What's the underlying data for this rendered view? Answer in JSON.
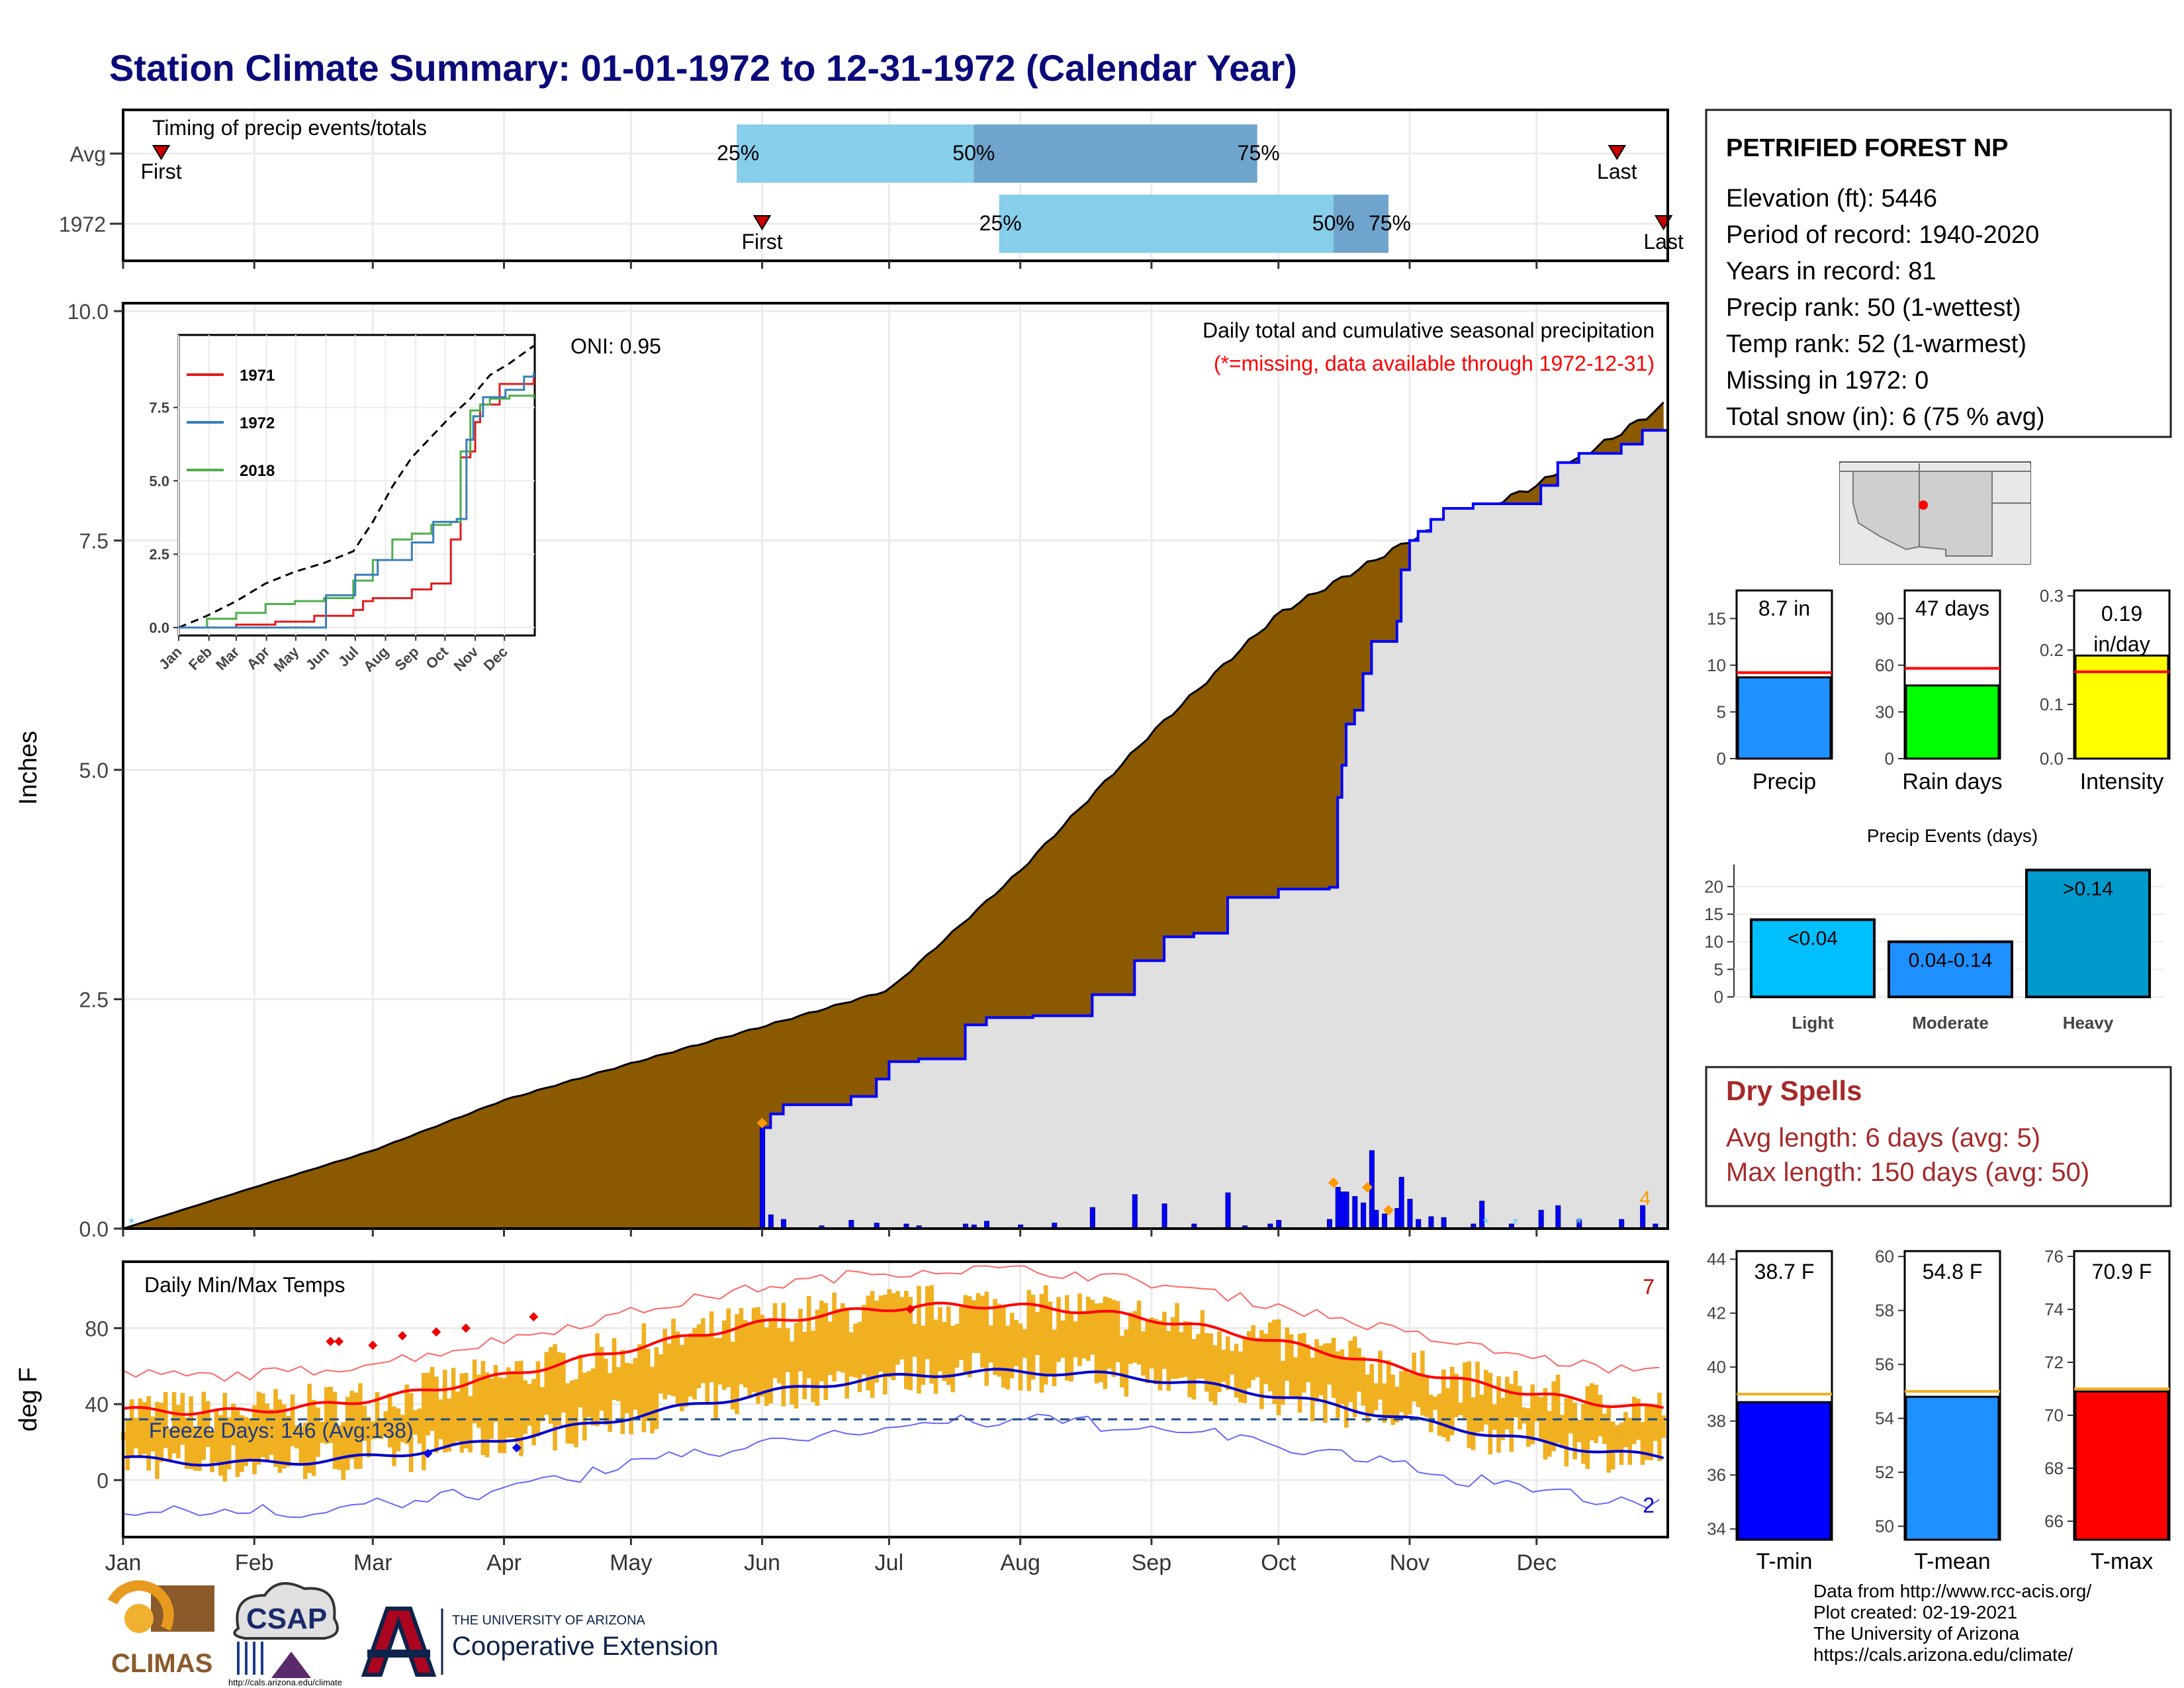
{
  "title": "Station Climate Summary: 01-01-1972 to 12-31-1972 (Calendar Year)",
  "timing": {
    "label": "Timing of precip events/totals",
    "rows": [
      {
        "name": "Avg",
        "first_label": "First",
        "last_label": "Last",
        "first_doy": 10,
        "last_doy": 354,
        "p25_doy": 146,
        "p50_doy": 202,
        "p75_doy": 269,
        "p25_label": "25%",
        "p50_label": "50%",
        "p75_label": "75%"
      },
      {
        "name": "1972",
        "first_label": "First",
        "last_label": "Last",
        "first_doy": 152,
        "last_doy": 365,
        "p25_doy": 208,
        "p50_doy": 287,
        "p75_doy": 300,
        "p25_label": "25%",
        "p50_label": "50%",
        "p75_label": "75%"
      }
    ]
  },
  "station": {
    "name": "PETRIFIED FOREST NP",
    "lines": [
      "Elevation (ft): 5446",
      "Period of record: 1940-2020",
      "Years in record: 81",
      "Precip rank: 50 (1-wettest)",
      "Temp rank: 52 (1-warmest)",
      "Missing in 1972: 0",
      "Total snow (in): 6 (75 % avg)"
    ]
  },
  "months": [
    "Jan",
    "Feb",
    "Mar",
    "Apr",
    "May",
    "Jun",
    "Jul",
    "Aug",
    "Sep",
    "Oct",
    "Nov",
    "Dec"
  ],
  "precip": {
    "ylabel": "Inches",
    "yticks": [
      "0.0",
      "2.5",
      "5.0",
      "7.5",
      "10.0"
    ],
    "ylim": [
      0,
      10
    ],
    "annotation": "Daily total and cumulative seasonal precipitation",
    "missing_note": "(*=missing, data available through 1972-12-31)",
    "oni": "ONI: 0.95",
    "corner_count": "4",
    "avg_cumulative_total": 9.0,
    "obs_cumulative_steps": [
      [
        1,
        0.0
      ],
      [
        151,
        0.0
      ],
      [
        152,
        1.1
      ],
      [
        154,
        1.25
      ],
      [
        157,
        1.35
      ],
      [
        173,
        1.44
      ],
      [
        179,
        1.63
      ],
      [
        182,
        1.82
      ],
      [
        189,
        1.85
      ],
      [
        200,
        2.22
      ],
      [
        205,
        2.3
      ],
      [
        216,
        2.32
      ],
      [
        230,
        2.55
      ],
      [
        240,
        2.92
      ],
      [
        247,
        3.18
      ],
      [
        254,
        3.22
      ],
      [
        262,
        3.61
      ],
      [
        274,
        3.7
      ],
      [
        286,
        3.72
      ],
      [
        288,
        4.7
      ],
      [
        289,
        5.05
      ],
      [
        290,
        5.5
      ],
      [
        292,
        5.65
      ],
      [
        294,
        6.05
      ],
      [
        296,
        6.4
      ],
      [
        302,
        6.62
      ],
      [
        303,
        7.18
      ],
      [
        305,
        7.5
      ],
      [
        307,
        7.6
      ],
      [
        310,
        7.73
      ],
      [
        313,
        7.85
      ],
      [
        320,
        7.9
      ],
      [
        336,
        8.1
      ],
      [
        340,
        8.35
      ],
      [
        345,
        8.45
      ],
      [
        355,
        8.55
      ],
      [
        360,
        8.7
      ],
      [
        365,
        8.7
      ]
    ],
    "daily_bars": [
      [
        152,
        1.1
      ],
      [
        154,
        0.15
      ],
      [
        157,
        0.1
      ],
      [
        166,
        0.03
      ],
      [
        173,
        0.09
      ],
      [
        179,
        0.06
      ],
      [
        186,
        0.05
      ],
      [
        189,
        0.03
      ],
      [
        200,
        0.05
      ],
      [
        202,
        0.04
      ],
      [
        205,
        0.08
      ],
      [
        213,
        0.04
      ],
      [
        221,
        0.06
      ],
      [
        230,
        0.23
      ],
      [
        240,
        0.37
      ],
      [
        247,
        0.27
      ],
      [
        254,
        0.05
      ],
      [
        262,
        0.39
      ],
      [
        266,
        0.03
      ],
      [
        272,
        0.05
      ],
      [
        274,
        0.09
      ],
      [
        286,
        0.1
      ],
      [
        288,
        0.45
      ],
      [
        289,
        0.4
      ],
      [
        290,
        0.4
      ],
      [
        292,
        0.35
      ],
      [
        294,
        0.28
      ],
      [
        296,
        0.85
      ],
      [
        297,
        0.2
      ],
      [
        299,
        0.16
      ],
      [
        302,
        0.22
      ],
      [
        303,
        0.56
      ],
      [
        305,
        0.32
      ],
      [
        307,
        0.1
      ],
      [
        310,
        0.13
      ],
      [
        313,
        0.12
      ],
      [
        320,
        0.05
      ],
      [
        322,
        0.3
      ],
      [
        329,
        0.05
      ],
      [
        336,
        0.2
      ],
      [
        340,
        0.25
      ],
      [
        345,
        0.1
      ],
      [
        355,
        0.1
      ],
      [
        360,
        0.25
      ],
      [
        363,
        0.05
      ]
    ],
    "markers_orange": [
      [
        152,
        1.15
      ],
      [
        287,
        0.5
      ],
      [
        295,
        0.45
      ],
      [
        300,
        0.2
      ]
    ],
    "markers_cyan": [
      [
        3,
        0.03
      ],
      [
        323,
        0.03
      ],
      [
        330,
        0.03
      ],
      [
        345,
        0.03
      ]
    ]
  },
  "inset": {
    "yticks": [
      "0.0",
      "2.5",
      "5.0",
      "7.5"
    ],
    "legend": [
      {
        "name": "1971",
        "color": "#e41a1c"
      },
      {
        "name": "1972",
        "color": "#377eb8"
      },
      {
        "name": "2018",
        "color": "#4daf4a"
      }
    ],
    "series": {
      "avg": [
        [
          1,
          0
        ],
        [
          30,
          0.4
        ],
        [
          60,
          0.9
        ],
        [
          90,
          1.5
        ],
        [
          120,
          1.9
        ],
        [
          150,
          2.2
        ],
        [
          180,
          2.6
        ],
        [
          200,
          3.6
        ],
        [
          220,
          4.8
        ],
        [
          240,
          5.8
        ],
        [
          260,
          6.5
        ],
        [
          280,
          7.2
        ],
        [
          300,
          7.8
        ],
        [
          320,
          8.6
        ],
        [
          340,
          9.0
        ],
        [
          365,
          9.6
        ]
      ],
      "1971": [
        [
          1,
          0
        ],
        [
          60,
          0.1
        ],
        [
          100,
          0.2
        ],
        [
          140,
          0.4
        ],
        [
          180,
          0.6
        ],
        [
          190,
          0.9
        ],
        [
          200,
          1.0
        ],
        [
          240,
          1.3
        ],
        [
          260,
          1.5
        ],
        [
          280,
          3.0
        ],
        [
          290,
          5.8
        ],
        [
          300,
          6.0
        ],
        [
          305,
          7.0
        ],
        [
          310,
          7.6
        ],
        [
          330,
          8.3
        ],
        [
          365,
          8.5
        ]
      ],
      "1972": [
        [
          1,
          0
        ],
        [
          151,
          0
        ],
        [
          152,
          1.1
        ],
        [
          182,
          1.8
        ],
        [
          205,
          2.3
        ],
        [
          240,
          2.9
        ],
        [
          262,
          3.6
        ],
        [
          286,
          3.7
        ],
        [
          296,
          6.4
        ],
        [
          303,
          7.2
        ],
        [
          313,
          7.85
        ],
        [
          336,
          8.1
        ],
        [
          355,
          8.55
        ],
        [
          365,
          8.7
        ]
      ],
      "2018": [
        [
          1,
          0
        ],
        [
          30,
          0.3
        ],
        [
          60,
          0.5
        ],
        [
          90,
          0.8
        ],
        [
          120,
          0.9
        ],
        [
          150,
          1.0
        ],
        [
          180,
          1.6
        ],
        [
          200,
          2.3
        ],
        [
          220,
          3.0
        ],
        [
          240,
          3.2
        ],
        [
          260,
          3.5
        ],
        [
          280,
          3.6
        ],
        [
          290,
          6.0
        ],
        [
          300,
          7.4
        ],
        [
          310,
          7.6
        ],
        [
          320,
          7.8
        ],
        [
          340,
          7.9
        ],
        [
          365,
          7.8
        ]
      ]
    }
  },
  "temps": {
    "ylabel": "deg F",
    "label": "Daily Min/Max Temps",
    "yticks": [
      "0",
      "40",
      "80"
    ],
    "ylim": [
      -30,
      115
    ],
    "freeze_text": "Freeze Days: 146 (Avg:138)",
    "freeze_line": 32,
    "top_count": "7",
    "bottom_count": "2"
  },
  "summary_bars": [
    {
      "name": "Precip",
      "value": 8.7,
      "avg": 9.2,
      "label": "8.7 in",
      "color": "#1e90ff",
      "ymax": 18,
      "yticks": [
        "0",
        "5",
        "10",
        "15"
      ],
      "tickvals": [
        0,
        5,
        10,
        15
      ]
    },
    {
      "name": "Rain days",
      "value": 47,
      "avg": 58,
      "label": "47 days",
      "color": "#00ff00",
      "ymax": 108,
      "yticks": [
        "0",
        "30",
        "60",
        "90"
      ],
      "tickvals": [
        0,
        30,
        60,
        90
      ]
    },
    {
      "name": "Intensity",
      "value": 0.19,
      "avg": 0.16,
      "label": "0.19 in/day",
      "color": "#ffff00",
      "ymax": 0.31,
      "yticks": [
        "0.0",
        "0.1",
        "0.2",
        "0.3"
      ],
      "tickvals": [
        0,
        0.1,
        0.2,
        0.3
      ]
    }
  ],
  "precip_events": {
    "title": "Precip Events (days)",
    "yticks": [
      "0",
      "5",
      "10",
      "15",
      "20"
    ],
    "ymax": 24,
    "bars": [
      {
        "name": "Light",
        "value": 14,
        "label": "<0.04",
        "color": "#00bfff"
      },
      {
        "name": "Moderate",
        "value": 10,
        "label": "0.04-0.14",
        "color": "#1e90ff"
      },
      {
        "name": "Heavy",
        "value": 23,
        "label": ">0.14",
        "color": "#0099cc"
      }
    ]
  },
  "dry_spells": {
    "title": "Dry Spells",
    "lines": [
      "Avg length: 6 days (avg: 5)",
      "Max length: 150 days (avg: 50)"
    ]
  },
  "temp_bars": [
    {
      "name": "T-min",
      "value": 38.7,
      "avg": 39.0,
      "label": "38.7 F",
      "color": "#0000ff",
      "ymin": 33.6,
      "ymax": 44.3,
      "yticks": [
        "34",
        "36",
        "38",
        "40",
        "42",
        "44"
      ],
      "tickvals": [
        34,
        36,
        38,
        40,
        42,
        44
      ]
    },
    {
      "name": "T-mean",
      "value": 54.8,
      "avg": 55.0,
      "label": "54.8 F",
      "color": "#1e90ff",
      "ymin": 49.5,
      "ymax": 60.2,
      "yticks": [
        "50",
        "52",
        "54",
        "56",
        "58",
        "60"
      ],
      "tickvals": [
        50,
        52,
        54,
        56,
        58,
        60
      ]
    },
    {
      "name": "T-max",
      "value": 70.9,
      "avg": 71.0,
      "label": "70.9 F",
      "color": "#ff0000",
      "ymin": 65.3,
      "ymax": 76.2,
      "yticks": [
        "66",
        "68",
        "70",
        "72",
        "74",
        "76"
      ],
      "tickvals": [
        66,
        68,
        70,
        72,
        74,
        76
      ]
    }
  ],
  "logos": {
    "climas": "CLIMAS",
    "csap": "CSAP",
    "csap_url": "http://cals.arizona.edu/climate",
    "ua_small": "THE UNIVERSITY OF ARIZONA",
    "ua_big": "Cooperative Extension"
  },
  "footer": [
    "Data from http://www.rcc-acis.org/",
    "Plot created: 02-19-2021",
    "The University of Arizona",
    "https://cals.arizona.edu/climate/"
  ]
}
